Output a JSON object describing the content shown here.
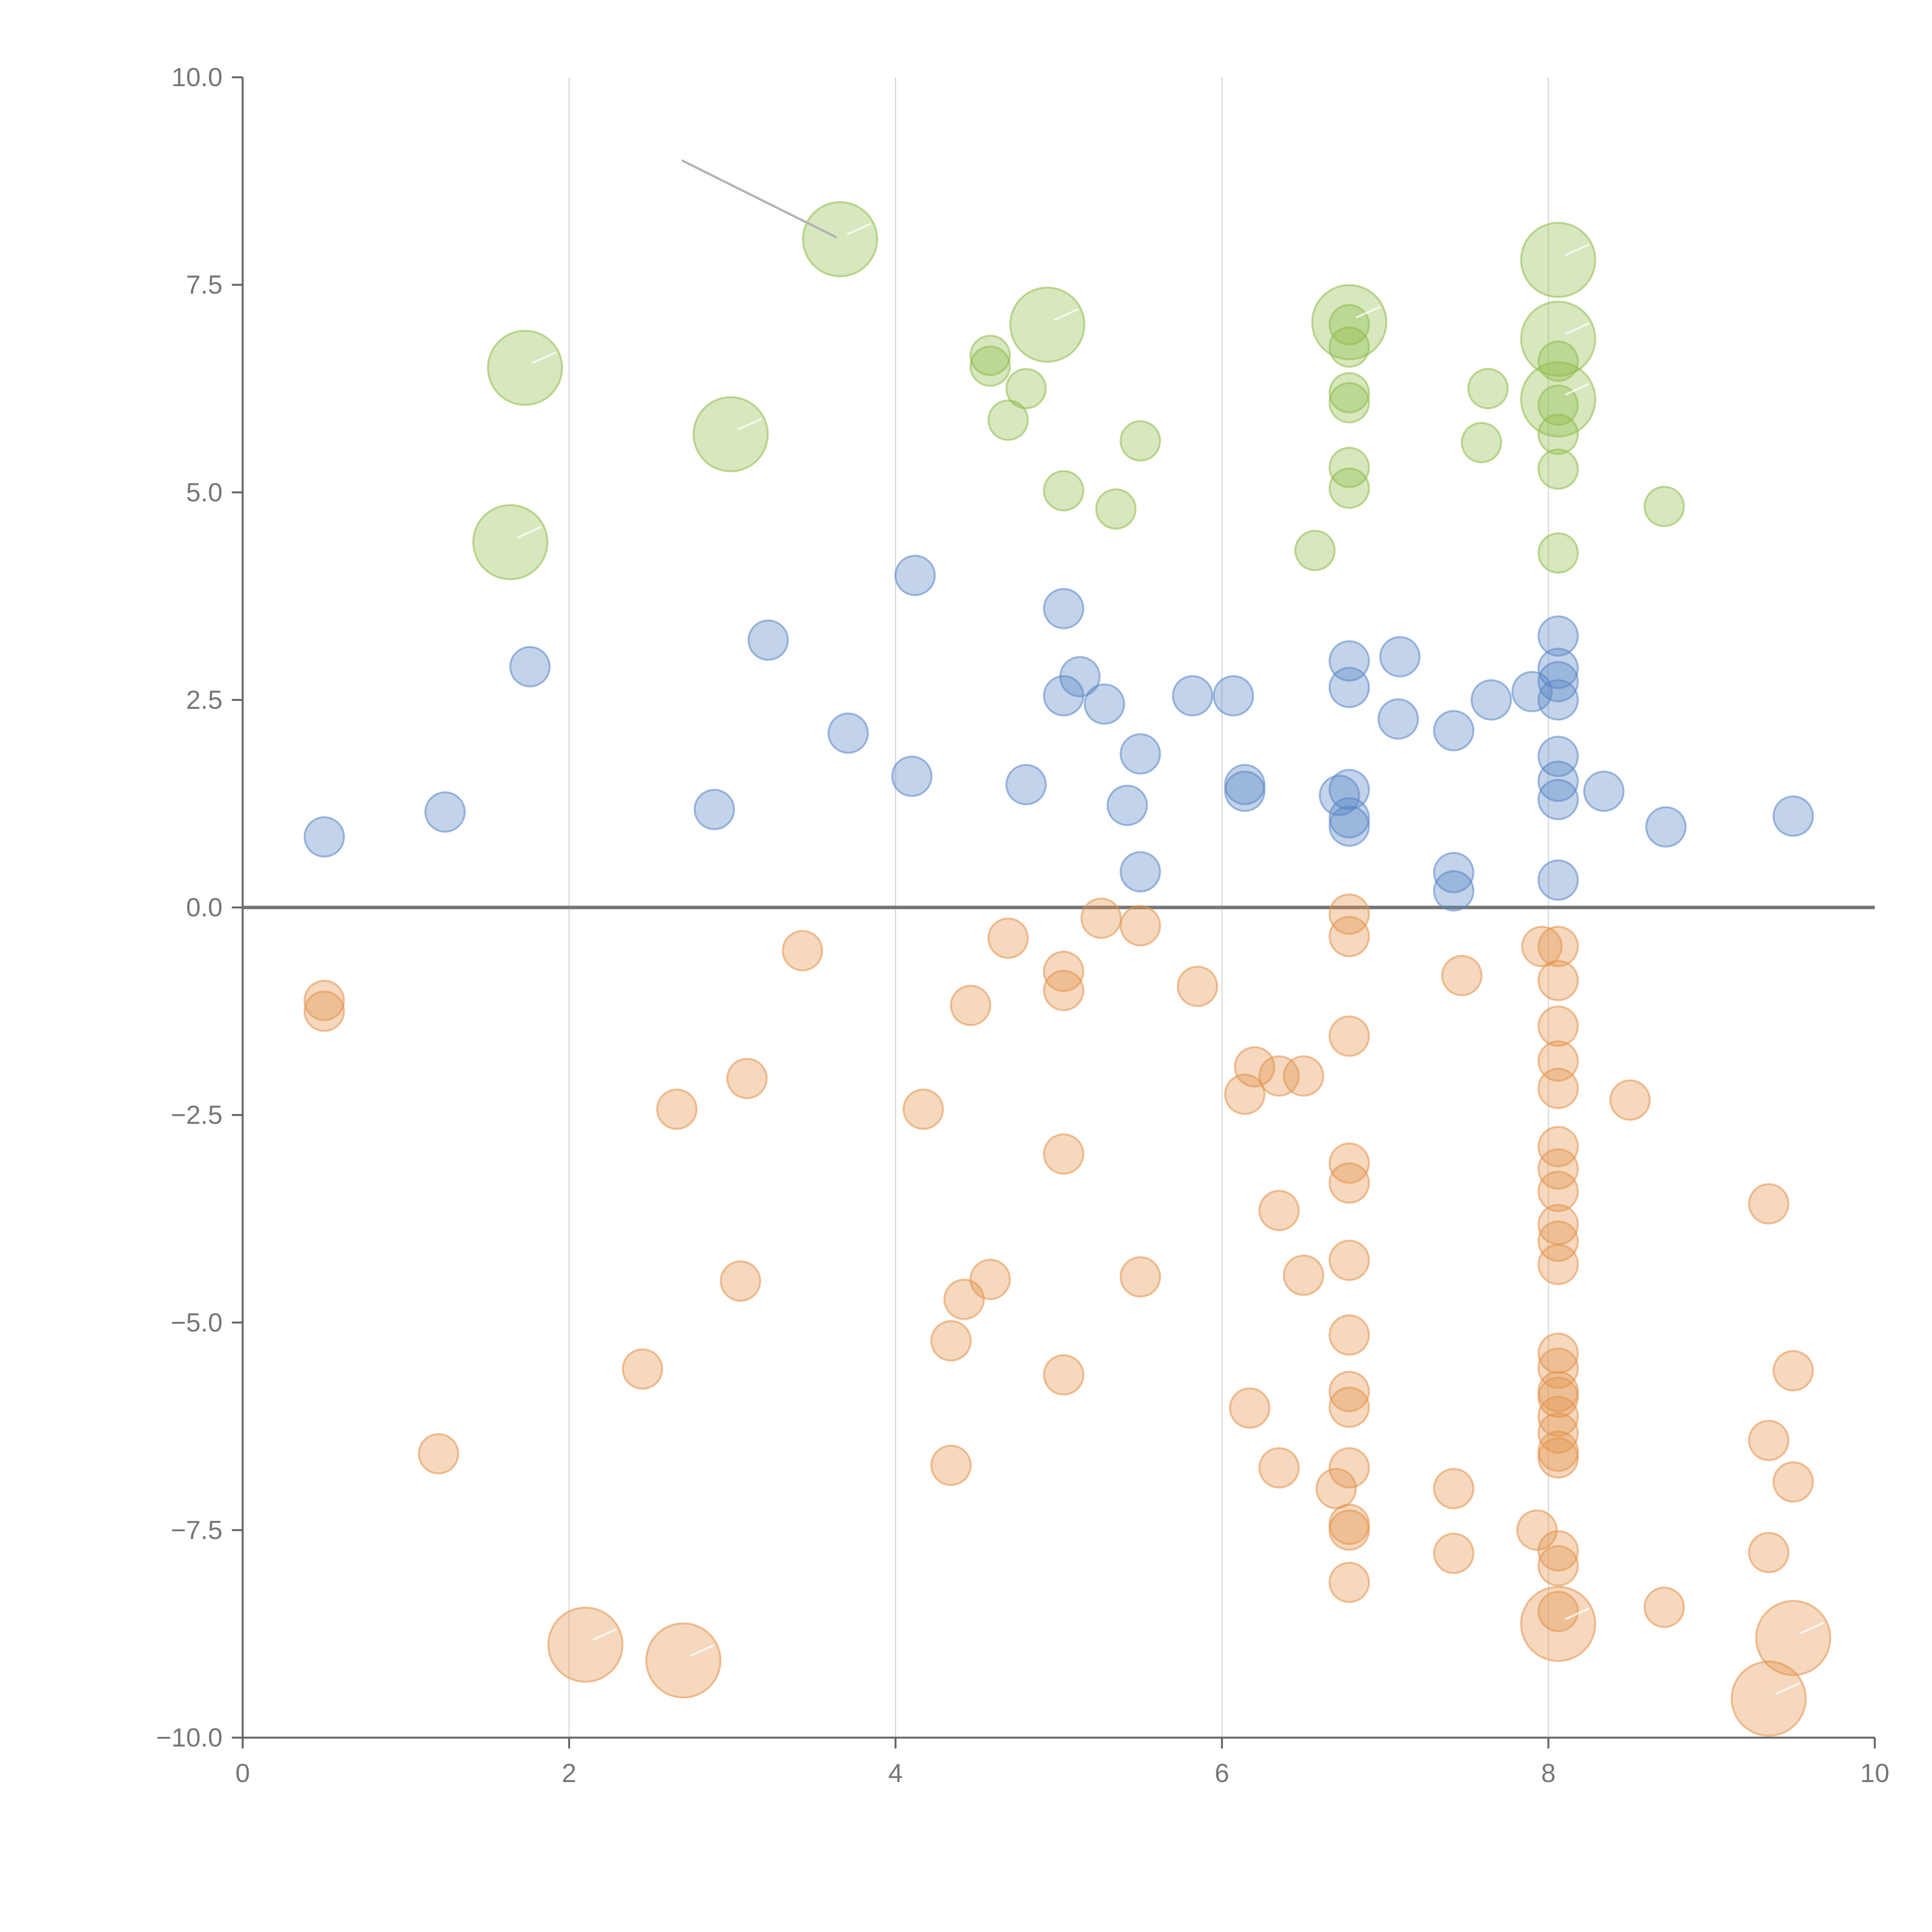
{
  "chart_data": {
    "type": "scatter",
    "title": "",
    "xlabel": "",
    "ylabel": "",
    "xlim": [
      0,
      10
    ],
    "ylim": [
      -10,
      10
    ],
    "x_ticks": [
      0,
      2,
      4,
      6,
      8,
      10
    ],
    "x_tick_labels": [
      "0",
      "2",
      "4",
      "6",
      "8",
      "10"
    ],
    "y_ticks": [
      10,
      7.5,
      5,
      2.5,
      0,
      -2.5,
      -5,
      -7.5,
      -10
    ],
    "y_tick_labels": [
      "10.0",
      "7.5",
      "5.0",
      "2.5",
      "0.0",
      "−2.5",
      "−5.0",
      "−7.5",
      "−10.0"
    ],
    "grid": "vertical",
    "baseline": 0,
    "colors": {
      "green": "#8fbc4a",
      "blue": "#5a86c6",
      "orange": "#e3924a",
      "axis": "#666666",
      "grid": "#d8d8d8",
      "baseline": "#777777",
      "leader": "#b4b4b4"
    },
    "series": [
      {
        "name": "green",
        "color": "#8fbc4a",
        "points": [
          {
            "x": 3.66,
            "y": 8.05,
            "size": 3
          },
          {
            "x": 1.73,
            "y": 6.5,
            "size": 3
          },
          {
            "x": 2.99,
            "y": 5.7,
            "size": 3
          },
          {
            "x": 1.64,
            "y": 4.4,
            "size": 3
          },
          {
            "x": 4.93,
            "y": 7.02,
            "size": 3
          },
          {
            "x": 6.78,
            "y": 7.05,
            "size": 3
          },
          {
            "x": 8.06,
            "y": 7.8,
            "size": 3
          },
          {
            "x": 8.06,
            "y": 6.85,
            "size": 3
          },
          {
            "x": 8.06,
            "y": 6.12,
            "size": 3
          },
          {
            "x": 4.58,
            "y": 6.65,
            "size": 1
          },
          {
            "x": 4.58,
            "y": 6.52,
            "size": 1
          },
          {
            "x": 4.8,
            "y": 6.25,
            "size": 1
          },
          {
            "x": 4.69,
            "y": 5.87,
            "size": 1
          },
          {
            "x": 5.5,
            "y": 5.62,
            "size": 1
          },
          {
            "x": 5.03,
            "y": 5.02,
            "size": 1
          },
          {
            "x": 5.35,
            "y": 4.8,
            "size": 1
          },
          {
            "x": 6.78,
            "y": 7.02,
            "size": 1
          },
          {
            "x": 6.78,
            "y": 6.75,
            "size": 1
          },
          {
            "x": 6.78,
            "y": 6.2,
            "size": 1
          },
          {
            "x": 6.78,
            "y": 6.08,
            "size": 1
          },
          {
            "x": 6.78,
            "y": 5.3,
            "size": 1
          },
          {
            "x": 6.78,
            "y": 5.05,
            "size": 1
          },
          {
            "x": 6.57,
            "y": 4.3,
            "size": 1
          },
          {
            "x": 7.63,
            "y": 6.25,
            "size": 1
          },
          {
            "x": 7.59,
            "y": 5.6,
            "size": 1
          },
          {
            "x": 8.06,
            "y": 6.58,
            "size": 1
          },
          {
            "x": 8.06,
            "y": 6.05,
            "size": 1
          },
          {
            "x": 8.06,
            "y": 5.7,
            "size": 1
          },
          {
            "x": 8.06,
            "y": 5.28,
            "size": 1
          },
          {
            "x": 8.06,
            "y": 4.27,
            "size": 1
          },
          {
            "x": 8.71,
            "y": 4.83,
            "size": 1
          }
        ]
      },
      {
        "name": "blue",
        "color": "#5a86c6",
        "points": [
          {
            "x": 0.5,
            "y": 0.85,
            "size": 1
          },
          {
            "x": 1.24,
            "y": 1.15,
            "size": 1
          },
          {
            "x": 1.76,
            "y": 2.9,
            "size": 1
          },
          {
            "x": 2.89,
            "y": 1.18,
            "size": 1
          },
          {
            "x": 3.22,
            "y": 3.22,
            "size": 1
          },
          {
            "x": 3.71,
            "y": 2.1,
            "size": 1
          },
          {
            "x": 4.1,
            "y": 1.58,
            "size": 1
          },
          {
            "x": 4.12,
            "y": 4.0,
            "size": 1
          },
          {
            "x": 4.8,
            "y": 1.48,
            "size": 1
          },
          {
            "x": 5.03,
            "y": 3.6,
            "size": 1
          },
          {
            "x": 5.03,
            "y": 2.55,
            "size": 1
          },
          {
            "x": 5.13,
            "y": 2.78,
            "size": 1
          },
          {
            "x": 5.28,
            "y": 2.45,
            "size": 1
          },
          {
            "x": 5.42,
            "y": 1.23,
            "size": 1
          },
          {
            "x": 5.5,
            "y": 1.85,
            "size": 1
          },
          {
            "x": 5.5,
            "y": 0.43,
            "size": 1
          },
          {
            "x": 5.82,
            "y": 2.55,
            "size": 1
          },
          {
            "x": 6.07,
            "y": 2.55,
            "size": 1
          },
          {
            "x": 6.14,
            "y": 1.48,
            "size": 1
          },
          {
            "x": 6.14,
            "y": 1.4,
            "size": 1
          },
          {
            "x": 6.78,
            "y": 2.97,
            "size": 1
          },
          {
            "x": 6.78,
            "y": 2.65,
            "size": 1
          },
          {
            "x": 6.78,
            "y": 1.42,
            "size": 1
          },
          {
            "x": 6.72,
            "y": 1.35,
            "size": 1
          },
          {
            "x": 6.78,
            "y": 1.08,
            "size": 1
          },
          {
            "x": 6.78,
            "y": 0.98,
            "size": 1
          },
          {
            "x": 7.09,
            "y": 3.02,
            "size": 1
          },
          {
            "x": 7.08,
            "y": 2.27,
            "size": 1
          },
          {
            "x": 7.42,
            "y": 2.13,
            "size": 1
          },
          {
            "x": 7.42,
            "y": 0.42,
            "size": 1
          },
          {
            "x": 7.42,
            "y": 0.2,
            "size": 1
          },
          {
            "x": 7.65,
            "y": 2.5,
            "size": 1
          },
          {
            "x": 7.9,
            "y": 2.6,
            "size": 1
          },
          {
            "x": 8.06,
            "y": 3.27,
            "size": 1
          },
          {
            "x": 8.06,
            "y": 2.88,
            "size": 1
          },
          {
            "x": 8.06,
            "y": 2.72,
            "size": 1
          },
          {
            "x": 8.06,
            "y": 2.5,
            "size": 1
          },
          {
            "x": 8.06,
            "y": 1.82,
            "size": 1
          },
          {
            "x": 8.06,
            "y": 1.52,
            "size": 1
          },
          {
            "x": 8.06,
            "y": 1.3,
            "size": 1
          },
          {
            "x": 8.06,
            "y": 0.33,
            "size": 1
          },
          {
            "x": 8.34,
            "y": 1.4,
            "size": 1
          },
          {
            "x": 8.72,
            "y": 0.97,
            "size": 1
          },
          {
            "x": 9.5,
            "y": 1.1,
            "size": 1
          }
        ]
      },
      {
        "name": "orange",
        "color": "#e3924a",
        "points": [
          {
            "x": 0.5,
            "y": -1.12,
            "size": 1
          },
          {
            "x": 0.5,
            "y": -1.25,
            "size": 1
          },
          {
            "x": 1.2,
            "y": -6.58,
            "size": 1
          },
          {
            "x": 2.45,
            "y": -5.56,
            "size": 1
          },
          {
            "x": 2.66,
            "y": -2.43,
            "size": 1
          },
          {
            "x": 3.05,
            "y": -4.5,
            "size": 1
          },
          {
            "x": 3.09,
            "y": -2.06,
            "size": 1
          },
          {
            "x": 3.43,
            "y": -0.52,
            "size": 1
          },
          {
            "x": 4.17,
            "y": -2.43,
            "size": 1
          },
          {
            "x": 4.34,
            "y": -5.22,
            "size": 1
          },
          {
            "x": 4.34,
            "y": -6.72,
            "size": 1
          },
          {
            "x": 4.42,
            "y": -4.72,
            "size": 1
          },
          {
            "x": 4.46,
            "y": -1.18,
            "size": 1
          },
          {
            "x": 4.58,
            "y": -4.48,
            "size": 1
          },
          {
            "x": 4.69,
            "y": -0.37,
            "size": 1
          },
          {
            "x": 5.03,
            "y": -0.77,
            "size": 1
          },
          {
            "x": 5.03,
            "y": -1.0,
            "size": 1
          },
          {
            "x": 5.03,
            "y": -2.97,
            "size": 1
          },
          {
            "x": 5.03,
            "y": -5.63,
            "size": 1
          },
          {
            "x": 5.26,
            "y": -0.13,
            "size": 1
          },
          {
            "x": 5.5,
            "y": -0.22,
            "size": 1
          },
          {
            "x": 5.5,
            "y": -4.45,
            "size": 1
          },
          {
            "x": 5.85,
            "y": -0.95,
            "size": 1
          },
          {
            "x": 6.14,
            "y": -2.25,
            "size": 1
          },
          {
            "x": 6.17,
            "y": -6.03,
            "size": 1
          },
          {
            "x": 6.2,
            "y": -1.92,
            "size": 1
          },
          {
            "x": 6.35,
            "y": -2.03,
            "size": 1
          },
          {
            "x": 6.35,
            "y": -3.65,
            "size": 1
          },
          {
            "x": 6.35,
            "y": -6.75,
            "size": 1
          },
          {
            "x": 6.5,
            "y": -2.03,
            "size": 1
          },
          {
            "x": 6.5,
            "y": -4.43,
            "size": 1
          },
          {
            "x": 6.7,
            "y": -7.0,
            "size": 1
          },
          {
            "x": 6.78,
            "y": -0.08,
            "size": 1
          },
          {
            "x": 6.78,
            "y": -0.35,
            "size": 1
          },
          {
            "x": 6.78,
            "y": -1.55,
            "size": 1
          },
          {
            "x": 6.78,
            "y": -3.08,
            "size": 1
          },
          {
            "x": 6.78,
            "y": -3.32,
            "size": 1
          },
          {
            "x": 6.78,
            "y": -4.25,
            "size": 1
          },
          {
            "x": 6.78,
            "y": -5.15,
            "size": 1
          },
          {
            "x": 6.78,
            "y": -5.83,
            "size": 1
          },
          {
            "x": 6.78,
            "y": -6.02,
            "size": 1
          },
          {
            "x": 6.78,
            "y": -6.75,
            "size": 1
          },
          {
            "x": 6.78,
            "y": -7.43,
            "size": 1
          },
          {
            "x": 6.78,
            "y": -7.5,
            "size": 1
          },
          {
            "x": 6.78,
            "y": -8.13,
            "size": 1
          },
          {
            "x": 7.42,
            "y": -7.0,
            "size": 1
          },
          {
            "x": 7.42,
            "y": -7.78,
            "size": 1
          },
          {
            "x": 7.47,
            "y": -0.82,
            "size": 1
          },
          {
            "x": 7.96,
            "y": -0.47,
            "size": 1
          },
          {
            "x": 7.93,
            "y": -7.5,
            "size": 1
          },
          {
            "x": 8.06,
            "y": -0.47,
            "size": 1
          },
          {
            "x": 8.06,
            "y": -0.88,
            "size": 1
          },
          {
            "x": 8.06,
            "y": -1.43,
            "size": 1
          },
          {
            "x": 8.06,
            "y": -1.85,
            "size": 1
          },
          {
            "x": 8.06,
            "y": -2.18,
            "size": 1
          },
          {
            "x": 8.06,
            "y": -2.88,
            "size": 1
          },
          {
            "x": 8.06,
            "y": -3.15,
            "size": 1
          },
          {
            "x": 8.06,
            "y": -3.42,
            "size": 1
          },
          {
            "x": 8.06,
            "y": -3.82,
            "size": 1
          },
          {
            "x": 8.06,
            "y": -4.02,
            "size": 1
          },
          {
            "x": 8.06,
            "y": -4.3,
            "size": 1
          },
          {
            "x": 8.06,
            "y": -5.37,
            "size": 1
          },
          {
            "x": 8.06,
            "y": -5.55,
            "size": 1
          },
          {
            "x": 8.06,
            "y": -5.83,
            "size": 1
          },
          {
            "x": 8.06,
            "y": -5.9,
            "size": 1
          },
          {
            "x": 8.06,
            "y": -6.13,
            "size": 1
          },
          {
            "x": 8.06,
            "y": -6.33,
            "size": 1
          },
          {
            "x": 8.06,
            "y": -6.55,
            "size": 1
          },
          {
            "x": 8.06,
            "y": -6.63,
            "size": 1
          },
          {
            "x": 8.06,
            "y": -7.75,
            "size": 1
          },
          {
            "x": 8.06,
            "y": -7.93,
            "size": 1
          },
          {
            "x": 8.06,
            "y": -8.48,
            "size": 1
          },
          {
            "x": 8.5,
            "y": -2.32,
            "size": 1
          },
          {
            "x": 8.71,
            "y": -8.43,
            "size": 1
          },
          {
            "x": 9.35,
            "y": -3.57,
            "size": 1
          },
          {
            "x": 9.35,
            "y": -6.42,
            "size": 1
          },
          {
            "x": 9.35,
            "y": -7.77,
            "size": 1
          },
          {
            "x": 9.5,
            "y": -5.58,
            "size": 1
          },
          {
            "x": 9.5,
            "y": -6.92,
            "size": 1
          },
          {
            "x": 2.1,
            "y": -8.88,
            "size": 3
          },
          {
            "x": 2.7,
            "y": -9.07,
            "size": 3
          },
          {
            "x": 8.06,
            "y": -8.63,
            "size": 3
          },
          {
            "x": 9.35,
            "y": -9.53,
            "size": 3
          },
          {
            "x": 9.5,
            "y": -8.8,
            "size": 3
          }
        ]
      }
    ],
    "annotations": [
      {
        "type": "leader-line",
        "x1": 2.69,
        "y1": 9.0,
        "x2": 3.64,
        "y2": 8.07
      }
    ]
  }
}
